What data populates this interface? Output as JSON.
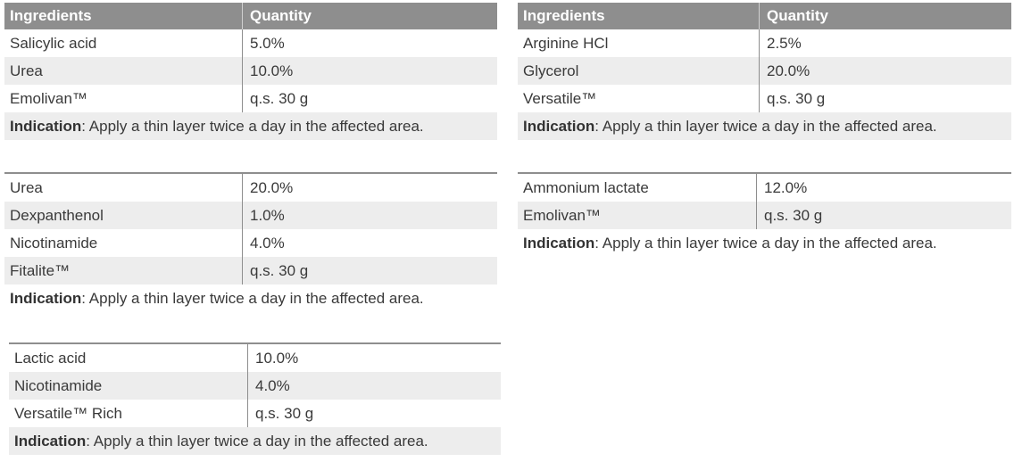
{
  "header": {
    "ingredients": "Ingredients",
    "quantity": "Quantity"
  },
  "indication_label": "Indication",
  "tables": [
    {
      "has_header": true,
      "rows": [
        [
          "Salicylic acid",
          "5.0%"
        ],
        [
          "Urea",
          "10.0%"
        ],
        [
          "Emolivan™",
          "q.s. 30 g"
        ]
      ],
      "indication": ": Apply a thin layer twice a day in the affected area."
    },
    {
      "has_header": false,
      "rows": [
        [
          "Urea",
          "20.0%"
        ],
        [
          "Dexpanthenol",
          "1.0%"
        ],
        [
          "Nicotinamide",
          "4.0%"
        ],
        [
          "Fitalite™",
          "q.s. 30 g"
        ]
      ],
      "indication": ": Apply a thin layer twice a day in the affected area."
    },
    {
      "has_header": false,
      "rows": [
        [
          "Lactic acid",
          "10.0%"
        ],
        [
          "Nicotinamide",
          "4.0%"
        ],
        [
          "Versatile™ Rich",
          "q.s. 30 g"
        ]
      ],
      "indication": ": Apply a thin layer twice a day in the affected area."
    },
    {
      "has_header": true,
      "rows": [
        [
          "Arginine HCl",
          "2.5%"
        ],
        [
          "Glycerol",
          "20.0%"
        ],
        [
          "Versatile™",
          "q.s. 30 g"
        ]
      ],
      "indication": ": Apply a thin layer twice a day in the affected area."
    },
    {
      "has_header": false,
      "rows": [
        [
          "Ammonium lactate",
          "12.0%"
        ],
        [
          "Emolivan™",
          "q.s. 30 g"
        ]
      ],
      "indication": ": Apply a thin layer twice a day in the affected area."
    }
  ]
}
